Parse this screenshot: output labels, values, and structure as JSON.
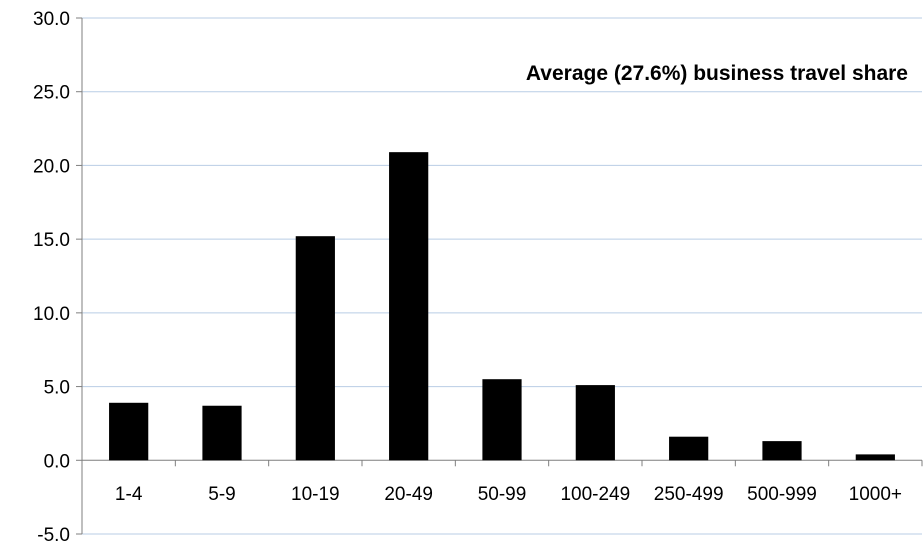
{
  "chart_data": {
    "type": "bar",
    "title": "Average (27.6%) business travel share",
    "categories": [
      "1-4",
      "5-9",
      "10-19",
      "20-49",
      "50-99",
      "100-249",
      "250-499",
      "500-999",
      "1000+"
    ],
    "series": [
      {
        "values": [
          3.9,
          3.7,
          15.2,
          20.9,
          5.5,
          5.1,
          1.6,
          1.3,
          0.4
        ]
      }
    ],
    "y_ticks": [
      "-5.0",
      "0.0",
      "5.0",
      "10.0",
      "15.0",
      "20.0",
      "25.0",
      "30.0"
    ],
    "ylim": [
      -5,
      30
    ],
    "xlabel": "",
    "ylabel": "",
    "grid": true,
    "colors": {
      "bar": "#000000",
      "grid": "#b9cde5",
      "axis": "#7f7f7f"
    }
  }
}
